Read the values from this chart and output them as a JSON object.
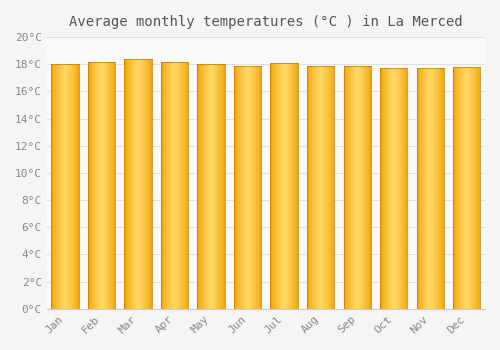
{
  "title": "Average monthly temperatures (°C ) in La Merced",
  "months": [
    "Jan",
    "Feb",
    "Mar",
    "Apr",
    "May",
    "Jun",
    "Jul",
    "Aug",
    "Sep",
    "Oct",
    "Nov",
    "Dec"
  ],
  "temperatures": [
    18.0,
    18.2,
    18.4,
    18.2,
    18.0,
    17.9,
    18.1,
    17.9,
    17.9,
    17.7,
    17.7,
    17.8
  ],
  "ylim": [
    0,
    20
  ],
  "yticks": [
    0,
    2,
    4,
    6,
    8,
    10,
    12,
    14,
    16,
    18,
    20
  ],
  "bar_color_center": "#FFD966",
  "bar_color_edge": "#F0A000",
  "bar_color_mid": "#FFBE2C",
  "background_color": "#F5F5F5",
  "plot_bg_color": "#FAFAFA",
  "grid_color": "#E0E0E0",
  "title_fontsize": 10,
  "tick_fontsize": 8,
  "tick_label_color": "#888888",
  "title_color": "#555555",
  "tick_label_font": "monospace",
  "bar_width": 0.75
}
